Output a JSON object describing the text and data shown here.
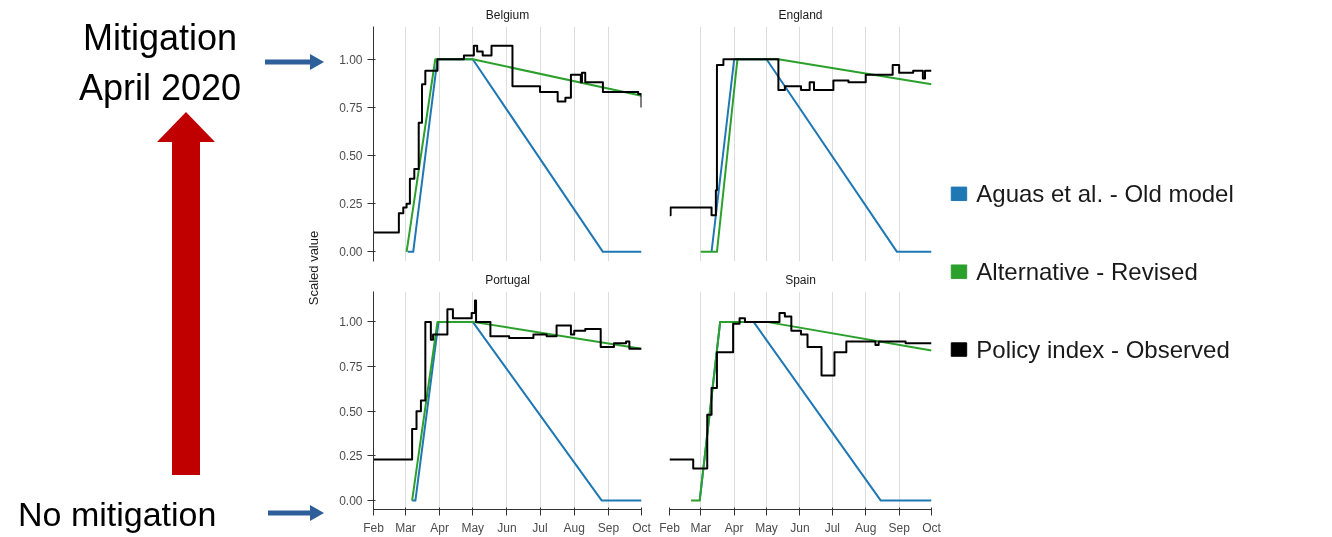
{
  "chart_data": [
    {
      "type": "line",
      "title": "Belgium",
      "ylabel": "Scaled value",
      "annotations": [
        "Mitigation\nApril 2020",
        "No mitigation"
      ],
      "xlim": [
        "2020-02-01",
        "2020-10-01"
      ],
      "ylim": [
        -0.05,
        1.17
      ],
      "tick_labels": "y",
      "grid": "x",
      "xticks": [
        {
          "value": "2020-02-01",
          "label": null
        },
        {
          "value": "2020-03-01",
          "label": null
        },
        {
          "value": "2020-04-01",
          "label": null
        },
        {
          "value": "2020-05-01",
          "label": null
        },
        {
          "value": "2020-06-01",
          "label": null
        },
        {
          "value": "2020-07-01",
          "label": null
        },
        {
          "value": "2020-08-01",
          "label": null
        },
        {
          "value": "2020-09-01",
          "label": null
        },
        {
          "value": "2020-10-01",
          "label": null
        }
      ],
      "yticks": [
        {
          "value": 0,
          "label": "0.00"
        },
        {
          "value": 0.25,
          "label": "0.25"
        },
        {
          "value": 0.5,
          "label": "0.50"
        },
        {
          "value": 0.75,
          "label": "0.75"
        },
        {
          "value": 1,
          "label": "1.00"
        }
      ],
      "series": [
        {
          "color": "#1f78b4",
          "x": [
            "2020-03-03",
            "2020-03-08",
            "2020-03-30",
            "2020-05-01",
            "2020-08-27",
            "2020-10-01"
          ],
          "values": [
            0,
            0,
            1,
            1,
            0,
            0
          ]
        },
        {
          "color": "#2ca02c",
          "x": [
            "2020-03-02",
            "2020-03-28",
            "2020-05-01",
            "2020-10-01"
          ],
          "values": [
            0,
            1,
            1,
            0.81
          ]
        },
        {
          "color": "#000000",
          "type": "step",
          "x": [
            "2020-02-01",
            "2020-02-24",
            "2020-02-28",
            "2020-03-02",
            "2020-03-05",
            "2020-03-09",
            "2020-03-13",
            "2020-03-16",
            "2020-03-19",
            "2020-03-30",
            "2020-04-23",
            "2020-05-02",
            "2020-05-05",
            "2020-05-10",
            "2020-05-18",
            "2020-06-06",
            "2020-07-01",
            "2020-07-17",
            "2020-07-24",
            "2020-07-29",
            "2020-08-07",
            "2020-08-08",
            "2020-08-11",
            "2020-08-27",
            "2020-09-28",
            "2020-10-01"
          ],
          "values": [
            0.1,
            0.2,
            0.23,
            0.25,
            0.38,
            0.43,
            0.67,
            0.87,
            0.94,
            1.0,
            1.02,
            1.07,
            1.04,
            1.02,
            1.07,
            0.86,
            0.83,
            0.78,
            0.8,
            0.92,
            0.88,
            0.93,
            0.88,
            0.83,
            0.82,
            0.75
          ]
        }
      ]
    },
    {
      "type": "line",
      "title": "England",
      "xlim": [
        "2020-02-01",
        "2020-10-01"
      ],
      "ylim": [
        -0.05,
        1.17
      ],
      "tick_labels": false,
      "grid": "x",
      "legend": "right",
      "xticks": [
        {
          "value": "2020-02-01",
          "label": null
        },
        {
          "value": "2020-03-01",
          "label": null
        },
        {
          "value": "2020-04-01",
          "label": null
        },
        {
          "value": "2020-05-01",
          "label": null
        },
        {
          "value": "2020-06-01",
          "label": null
        },
        {
          "value": "2020-07-01",
          "label": null
        },
        {
          "value": "2020-08-01",
          "label": null
        },
        {
          "value": "2020-09-01",
          "label": null
        },
        {
          "value": "2020-10-01",
          "label": null
        }
      ],
      "yticks": [
        {
          "value": 0,
          "label": null
        },
        {
          "value": 0.25,
          "label": null
        },
        {
          "value": 0.5,
          "label": null
        },
        {
          "value": 0.75,
          "label": null
        },
        {
          "value": 1,
          "label": null
        }
      ],
      "series": [
        {
          "name": "Aguas et al. - Old model",
          "color": "#1f78b4",
          "x": [
            "2020-03-11",
            "2020-04-01",
            "2020-05-01",
            "2020-08-30",
            "2020-10-01"
          ],
          "values": [
            0,
            1,
            1,
            0,
            0
          ]
        },
        {
          "name": "Alternative - Revised",
          "color": "#2ca02c",
          "x": [
            "2020-03-01",
            "2020-03-16",
            "2020-04-04",
            "2020-05-12",
            "2020-10-01"
          ],
          "values": [
            0,
            0,
            1,
            1,
            0.87
          ]
        },
        {
          "name": "Policy index - Observed",
          "color": "#000000",
          "type": "step",
          "x": [
            "2020-02-01",
            "2020-02-02",
            "2020-03-11",
            "2020-03-15",
            "2020-03-16",
            "2020-03-22",
            "2020-05-12",
            "2020-05-18",
            "2020-06-02",
            "2020-06-10",
            "2020-06-14",
            "2020-07-02",
            "2020-07-16",
            "2020-08-01",
            "2020-08-26",
            "2020-09-01",
            "2020-09-14",
            "2020-09-23",
            "2020-09-25",
            "2020-10-01"
          ],
          "values": [
            0.19,
            0.23,
            0.19,
            0.32,
            0.97,
            1.0,
            0.84,
            0.86,
            0.84,
            0.88,
            0.84,
            0.89,
            0.88,
            0.92,
            0.97,
            0.93,
            0.94,
            0.9,
            0.94,
            0.94
          ]
        }
      ]
    },
    {
      "type": "line",
      "title": "Portugal",
      "xlim": [
        "2020-02-01",
        "2020-10-01"
      ],
      "ylim": [
        -0.05,
        1.17
      ],
      "grid": "x",
      "xticks": [
        {
          "value": "2020-02-01",
          "label": "Feb"
        },
        {
          "value": "2020-03-01",
          "label": "Mar"
        },
        {
          "value": "2020-04-01",
          "label": "Apr"
        },
        {
          "value": "2020-05-01",
          "label": "May"
        },
        {
          "value": "2020-06-01",
          "label": "Jun"
        },
        {
          "value": "2020-07-01",
          "label": "Jul"
        },
        {
          "value": "2020-08-01",
          "label": "Aug"
        },
        {
          "value": "2020-09-01",
          "label": "Sep"
        },
        {
          "value": "2020-10-01",
          "label": "Oct"
        }
      ],
      "yticks": [
        {
          "value": 0,
          "label": "0.00"
        },
        {
          "value": 0.25,
          "label": "0.25"
        },
        {
          "value": 0.5,
          "label": "0.50"
        },
        {
          "value": 0.75,
          "label": "0.75"
        },
        {
          "value": 1,
          "label": "1.00"
        }
      ],
      "series": [
        {
          "color": "#1f78b4",
          "x": [
            "2020-03-07",
            "2020-03-10",
            "2020-03-31",
            "2020-05-01",
            "2020-08-26",
            "2020-10-01"
          ],
          "values": [
            0,
            0,
            1,
            1,
            0,
            0
          ]
        },
        {
          "color": "#2ca02c",
          "x": [
            "2020-03-07",
            "2020-03-30",
            "2020-05-01",
            "2020-10-01"
          ],
          "values": [
            0,
            1,
            1,
            0.85
          ]
        },
        {
          "color": "#000000",
          "type": "step",
          "x": [
            "2020-02-01",
            "2020-03-07",
            "2020-03-11",
            "2020-03-15",
            "2020-03-19",
            "2020-03-24",
            "2020-03-26",
            "2020-04-08",
            "2020-04-13",
            "2020-04-30",
            "2020-05-03",
            "2020-05-04",
            "2020-05-17",
            "2020-06-03",
            "2020-06-25",
            "2020-07-07",
            "2020-07-16",
            "2020-07-29",
            "2020-08-01",
            "2020-08-11",
            "2020-08-25",
            "2020-09-06",
            "2020-09-17",
            "2020-09-20",
            "2020-10-01"
          ],
          "values": [
            0.23,
            0.4,
            0.5,
            0.56,
            1.0,
            0.9,
            0.93,
            1.07,
            1.02,
            1.05,
            1.12,
            1.0,
            0.92,
            0.91,
            0.93,
            0.92,
            0.98,
            0.93,
            0.95,
            0.96,
            0.86,
            0.88,
            0.89,
            0.85,
            0.85
          ]
        }
      ]
    },
    {
      "type": "line",
      "title": "Spain",
      "xlim": [
        "2020-02-01",
        "2020-10-01"
      ],
      "ylim": [
        -0.05,
        1.17
      ],
      "tick_labels": "x",
      "grid": "x",
      "xticks": [
        {
          "value": "2020-02-01",
          "label": "Feb"
        },
        {
          "value": "2020-03-01",
          "label": "Mar"
        },
        {
          "value": "2020-04-01",
          "label": "Apr"
        },
        {
          "value": "2020-05-01",
          "label": "May"
        },
        {
          "value": "2020-06-01",
          "label": "Jun"
        },
        {
          "value": "2020-07-01",
          "label": "Jul"
        },
        {
          "value": "2020-08-01",
          "label": "Aug"
        },
        {
          "value": "2020-09-01",
          "label": "Sep"
        },
        {
          "value": "2020-10-01",
          "label": "Oct"
        }
      ],
      "yticks": [
        {
          "value": 0,
          "label": null
        },
        {
          "value": 0.25,
          "label": null
        },
        {
          "value": 0.5,
          "label": null
        },
        {
          "value": 0.75,
          "label": null
        },
        {
          "value": 1,
          "label": null
        }
      ],
      "series": [
        {
          "color": "#1f78b4",
          "x": [
            "2020-02-29",
            "2020-03-19",
            "2020-04-19",
            "2020-08-15",
            "2020-10-01"
          ],
          "values": [
            0,
            1,
            1,
            0,
            0
          ]
        },
        {
          "color": "#2ca02c",
          "x": [
            "2020-02-21",
            "2020-02-29",
            "2020-03-19",
            "2020-05-01",
            "2020-10-01"
          ],
          "values": [
            0,
            0,
            1,
            1,
            0.84
          ]
        },
        {
          "color": "#000000",
          "type": "step",
          "x": [
            "2020-02-01",
            "2020-02-23",
            "2020-03-07",
            "2020-03-11",
            "2020-03-16",
            "2020-03-31",
            "2020-04-06",
            "2020-04-11",
            "2020-05-13",
            "2020-05-18",
            "2020-05-24",
            "2020-06-02",
            "2020-06-08",
            "2020-06-21",
            "2020-07-03",
            "2020-07-14",
            "2020-08-10",
            "2020-08-13",
            "2020-09-07",
            "2020-10-01"
          ],
          "values": [
            0.23,
            0.18,
            0.48,
            0.63,
            0.83,
            0.99,
            1.02,
            1.0,
            1.05,
            1.03,
            0.95,
            0.93,
            0.86,
            0.7,
            0.83,
            0.89,
            0.87,
            0.89,
            0.88,
            0.88
          ]
        }
      ]
    }
  ]
}
